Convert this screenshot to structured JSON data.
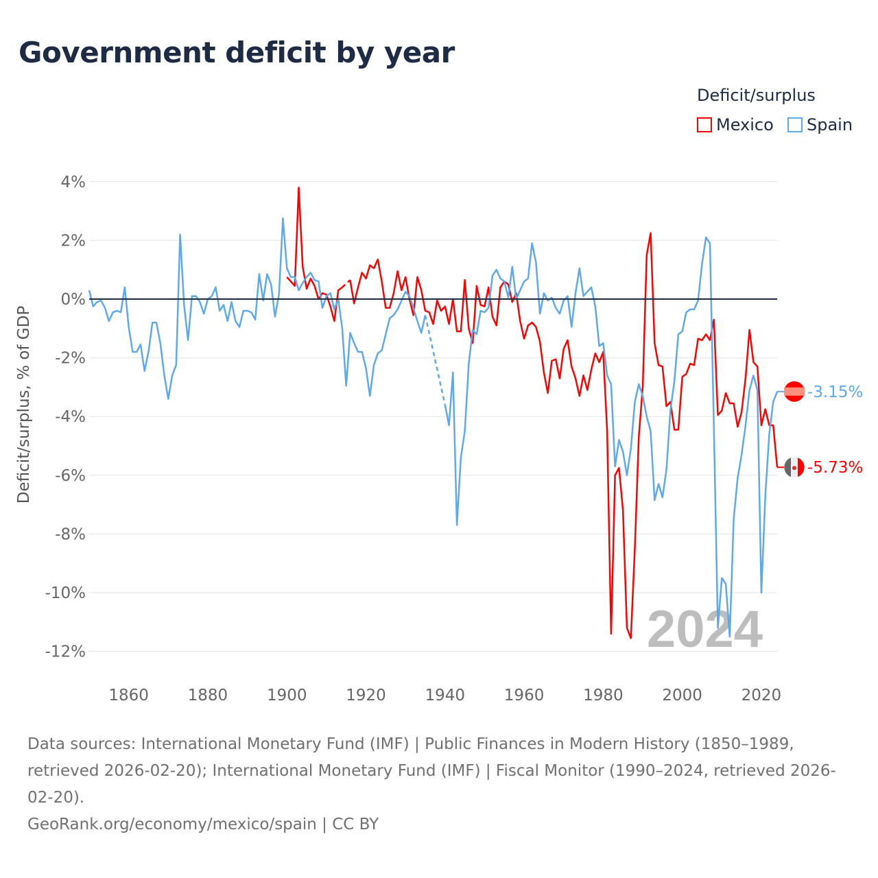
{
  "title": "Government deficit by year",
  "legend": {
    "title": "Deficit/surplus",
    "items": [
      {
        "label": "Mexico",
        "color": "#ff0000"
      },
      {
        "label": "Spain",
        "color": "#5ea8ec"
      }
    ]
  },
  "watermark_year": "2024",
  "footer": {
    "sources": "Data sources: International Monetary Fund (IMF) | Public Finances in Modern History (1850–1989, retrieved 2026-02-20); International Monetary Fund (IMF) | Fiscal Monitor (1990–2024, retrieved 2026-02-20).",
    "credit": "GeoRank.org/economy/mexico/spain | CC BY"
  },
  "chart_data": {
    "type": "line",
    "title": "Government deficit by year",
    "xlabel": "",
    "ylabel": "Deficit/surplus, % of GDP",
    "xlim": [
      1850,
      2024
    ],
    "ylim": [
      -13,
      5
    ],
    "yticks": [
      4,
      2,
      0,
      -2,
      -4,
      -6,
      -8,
      -10,
      -12
    ],
    "ytick_labels": [
      "4%",
      "2%",
      "0%",
      "-2%",
      "-4%",
      "-6%",
      "-8%",
      "-10%",
      "-12%"
    ],
    "xticks": [
      1860,
      1880,
      1900,
      1920,
      1940,
      1960,
      1980,
      2000,
      2020
    ],
    "xtick_labels": [
      "1860",
      "1880",
      "1900",
      "1920",
      "1940",
      "1960",
      "1980",
      "2000",
      "2020"
    ],
    "grid": true,
    "legend_position": "top-right",
    "end_labels": {
      "Mexico": "-5.73%",
      "Spain": "-3.15%"
    },
    "series": [
      {
        "name": "Spain",
        "color": "#5ea8ec",
        "start_year": 1850,
        "values": [
          0.3,
          -0.25,
          -0.1,
          -0.05,
          -0.3,
          -0.75,
          -0.45,
          -0.4,
          -0.45,
          0.4,
          -0.95,
          -1.8,
          -1.8,
          -1.55,
          -2.45,
          -1.8,
          -0.8,
          -0.8,
          -1.5,
          -2.6,
          -3.4,
          -2.6,
          -2.25,
          2.2,
          -0.2,
          -1.4,
          0.1,
          0.1,
          -0.1,
          -0.5,
          0.0,
          0.1,
          0.4,
          -0.4,
          -0.2,
          -0.75,
          -0.1,
          -0.75,
          -0.95,
          -0.4,
          -0.4,
          -0.45,
          -0.7,
          0.85,
          -0.05,
          0.85,
          0.5,
          -0.6,
          0.15,
          2.75,
          1.05,
          0.75,
          0.75,
          0.3,
          0.55,
          0.75,
          0.9,
          0.65,
          0.6,
          -0.3,
          0.1,
          0.2,
          -0.35,
          0.0,
          -1.0,
          -2.95,
          -1.15,
          -1.5,
          -1.8,
          -1.8,
          -2.35,
          -3.3,
          -2.25,
          -1.85,
          -1.75,
          -1.2,
          -0.65,
          -0.55,
          -0.35,
          -0.05,
          0.25,
          0.1,
          -0.3,
          -0.75,
          -1.15,
          -0.55,
          null,
          null,
          null,
          null,
          -3.6,
          -4.3,
          -2.5,
          -7.7,
          -5.4,
          -4.5,
          -2.2,
          -1.05,
          -1.2,
          -0.4,
          -0.45,
          -0.3,
          0.8,
          1.0,
          0.7,
          0.6,
          0.05,
          1.1,
          0.0,
          0.3,
          0.6,
          0.7,
          1.9,
          1.25,
          -0.5,
          0.2,
          -0.05,
          0.05,
          -0.3,
          -0.5,
          -0.05,
          0.1,
          -0.95,
          0.2,
          1.05,
          0.1,
          0.25,
          0.4,
          -0.25,
          -1.6,
          -1.5,
          -2.6,
          -2.9,
          -5.7,
          -4.8,
          -5.2,
          -6.0,
          -5.1,
          -3.5,
          -2.9,
          -3.3,
          -4.0,
          -4.5,
          -6.85,
          -6.3,
          -6.75,
          -5.8,
          -3.8,
          -2.8,
          -1.2,
          -1.1,
          -0.45,
          -0.35,
          -0.35,
          -0.05,
          1.2,
          2.1,
          1.9,
          -4.4,
          -11.2,
          -9.5,
          -9.7,
          -11.5,
          -7.5,
          -6.1,
          -5.3,
          -4.3,
          -3.1,
          -2.6,
          -3.1,
          -10.0,
          -6.7,
          -4.6,
          -3.5,
          -3.15
        ]
      },
      {
        "name": "Mexico",
        "color": "#ff0000",
        "start_year": 1900,
        "values": [
          0.75,
          0.6,
          0.45,
          3.8,
          1.1,
          0.35,
          0.7,
          0.45,
          0.0,
          0.2,
          0.15,
          -0.25,
          -0.75,
          0.3,
          0.4,
          null,
          0.65,
          -0.15,
          0.4,
          0.9,
          0.7,
          1.15,
          1.05,
          1.35,
          0.6,
          -0.3,
          -0.3,
          0.2,
          0.95,
          0.3,
          0.75,
          0.0,
          -0.55,
          0.75,
          0.3,
          -0.4,
          -0.45,
          -0.85,
          -0.05,
          -0.4,
          -0.25,
          -0.85,
          0.0,
          -1.1,
          -1.1,
          0.65,
          -1.0,
          -1.5,
          0.45,
          -0.2,
          -0.25,
          0.4,
          -0.6,
          -0.9,
          0.4,
          0.6,
          0.5,
          -0.1,
          0.2,
          -0.75,
          -1.35,
          -0.9,
          -0.8,
          -0.95,
          -1.45,
          -2.5,
          -3.2,
          -2.1,
          -2.05,
          -2.7,
          -1.7,
          -1.4,
          -2.3,
          -2.7,
          -3.3,
          -2.6,
          -3.1,
          -2.4,
          -1.85,
          -2.15,
          -1.8,
          -4.5,
          -11.4,
          -6.0,
          -5.75,
          -7.2,
          -11.2,
          -11.55,
          -8.5,
          -4.7,
          -3.0,
          1.5,
          2.25,
          -1.5,
          -2.25,
          -2.3,
          -3.65,
          -3.5,
          -4.45,
          -4.45,
          -2.65,
          -2.55,
          -2.2,
          -2.25,
          -1.35,
          -1.4,
          -1.2,
          -1.4,
          -0.7,
          -3.95,
          -3.8,
          -3.2,
          -3.55,
          -3.55,
          -4.35,
          -3.85,
          -2.7,
          -1.05,
          -2.15,
          -2.3,
          -4.3,
          -3.75,
          -4.3,
          -4.3,
          -5.73
        ]
      }
    ]
  }
}
